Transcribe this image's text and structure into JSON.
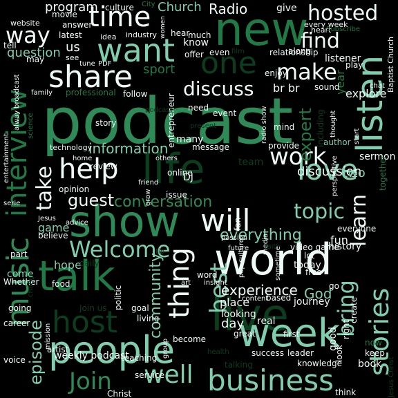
{
  "background": "#000000",
  "colors": {
    "dark": "#0b3d1f",
    "darker": "#06260f",
    "mid": "#1f7a45",
    "green": "#2e8b57",
    "mint": "#7fcfae",
    "pale": "#c8efe0",
    "white": "#eefaf5"
  },
  "words": [
    "podcast",
    "new",
    "world",
    "show",
    "life",
    "talk",
    "people",
    "live",
    "week",
    "listen",
    "music",
    "interview",
    "business",
    "host",
    "share",
    "want",
    "time",
    "help",
    "love",
    "thing",
    "will",
    "one",
    "way",
    "stories",
    "topic",
    "hosted",
    "make",
    "discuss",
    "find",
    "work",
    "best",
    "Welcome",
    "Join",
    "well",
    "learn",
    "bring",
    "take",
    "conversation",
    "guest",
    "information",
    "everything",
    "expert",
    "episode",
    "community",
    "experience",
    "discussion",
    "weekly podcast",
    "Radio",
    "program",
    "Church",
    "us",
    "question",
    "latest",
    "movie",
    "website",
    "culture",
    "City",
    "idea",
    "industry",
    "women",
    "give",
    "every week",
    "heart",
    "Subscribe",
    "Baptist Church",
    "listener",
    "play",
    "year",
    "br br",
    "sport",
    "entrepreneur",
    "professional",
    "follow",
    "family",
    "broadcast",
    "alway",
    "science",
    "technology",
    "entertainment",
    "story",
    "need",
    "present",
    "event",
    "mind",
    "radio show",
    "including",
    "thought",
    "author",
    "sermon",
    "explore",
    "chat",
    "sound",
    "podcast",
    "review",
    "home",
    "others",
    "message",
    "team",
    "provide",
    "let",
    "start",
    "together",
    "perspective",
    "two",
    "God",
    "fun",
    "history",
    "everyone",
    "video game",
    "pop culture",
    "media",
    "fan",
    "content",
    "future",
    "faith",
    "passion",
    "sometime",
    "lot",
    "free",
    "go",
    "today",
    "journey",
    "based",
    "create",
    "place",
    "looking",
    "day",
    "real",
    "first",
    "great",
    "success",
    "leader",
    "knowledge",
    "book",
    "think",
    "Jesus Christ",
    "keep",
    "now",
    "look",
    "right",
    "good",
    "insight",
    "art",
    "word",
    "politic",
    "living",
    "goal",
    "Join us",
    "teaching",
    "become",
    "group",
    "talking",
    "service",
    "health",
    "Christ",
    "artist",
    "voice",
    "career",
    "going",
    "Whether",
    "change",
    "mission",
    "food",
    "come",
    "hope",
    "daily",
    "tip",
    "part",
    "believe",
    "game",
    "advice",
    "Jesus",
    "opinion",
    "friend",
    "grow",
    "online",
    "issue",
    "serie",
    "DJ",
    "many",
    "know",
    "hear",
    "much",
    "offer",
    "even",
    "film",
    "relationship",
    "along",
    "enjoy",
    "tell",
    "answer",
    "may",
    "see",
    "tune",
    "PDF",
    "Homily"
  ]
}
